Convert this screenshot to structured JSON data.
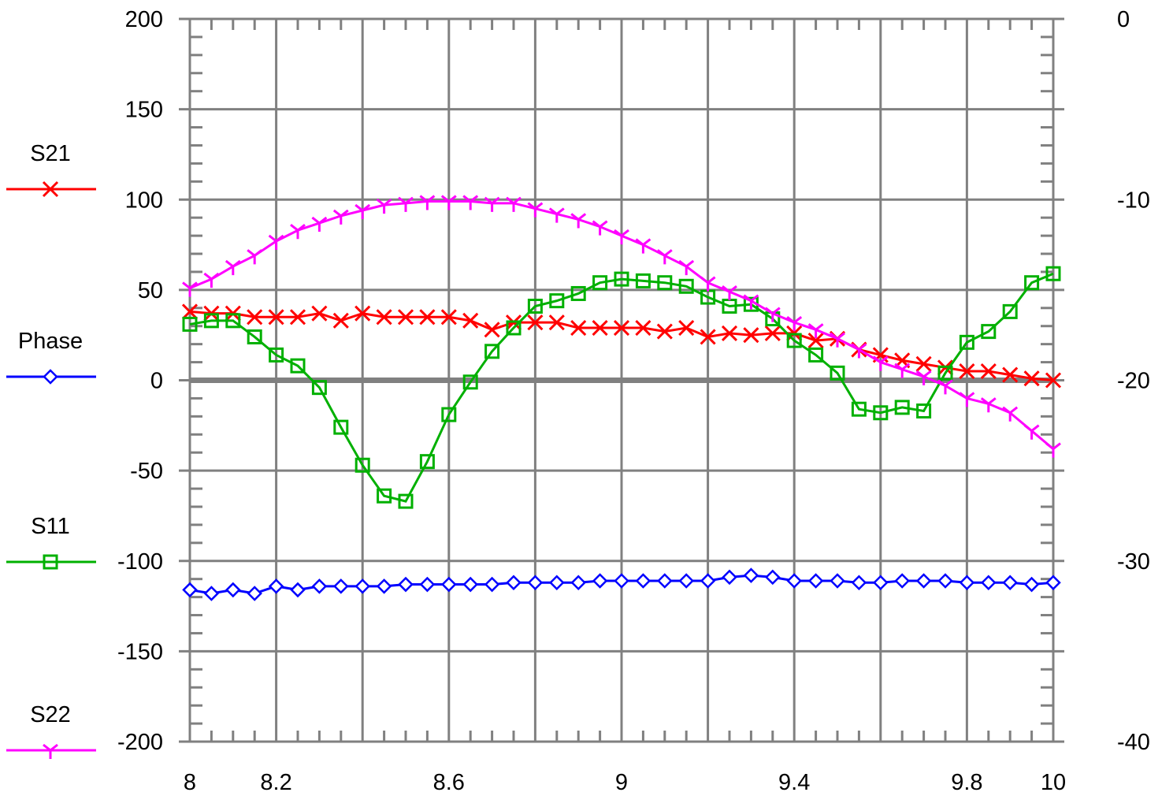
{
  "chart_data": {
    "type": "line",
    "title": "",
    "xlabel": "",
    "ylabel": "",
    "y2label": "",
    "xlim": [
      8,
      10
    ],
    "ylim": [
      -200,
      200
    ],
    "y2lim": [
      -40,
      0
    ],
    "x_ticks": [
      8,
      8.2,
      8.6,
      9,
      9.4,
      9.8,
      10
    ],
    "x_tick_labels": [
      "8",
      "8.2",
      "8.6",
      "9",
      "9.4",
      "9.8",
      "10"
    ],
    "y_ticks": [
      200,
      150,
      100,
      50,
      0,
      -50,
      -100,
      -150,
      -200
    ],
    "y_tick_labels": [
      "200",
      "150",
      "100",
      "50",
      "0",
      "-50",
      "-100",
      "-150",
      "-200"
    ],
    "y2_ticks": [
      0,
      -10,
      -20,
      -30,
      -40
    ],
    "y2_tick_labels": [
      "0",
      "-10",
      "-20",
      "-30",
      "-40"
    ],
    "grid": true,
    "legend_position": "left",
    "x": [
      8.0,
      8.05,
      8.1,
      8.15,
      8.2,
      8.25,
      8.3,
      8.35,
      8.4,
      8.45,
      8.5,
      8.55,
      8.6,
      8.65,
      8.7,
      8.75,
      8.8,
      8.85,
      8.9,
      8.95,
      9.0,
      9.05,
      9.1,
      9.15,
      9.2,
      9.25,
      9.3,
      9.35,
      9.4,
      9.45,
      9.5,
      9.55,
      9.6,
      9.65,
      9.7,
      9.75,
      9.8,
      9.85,
      9.9,
      9.95,
      10.0
    ],
    "series": [
      {
        "name": "S21",
        "axis": "right",
        "color": "#ff0000",
        "marker": "x",
        "values": [
          -16.2,
          -16.3,
          -16.3,
          -16.5,
          -16.5,
          -16.5,
          -16.3,
          -16.7,
          -16.3,
          -16.5,
          -16.5,
          -16.5,
          -16.5,
          -16.7,
          -17.2,
          -16.8,
          -16.8,
          -16.8,
          -17.1,
          -17.1,
          -17.1,
          -17.1,
          -17.3,
          -17.1,
          -17.6,
          -17.4,
          -17.5,
          -17.4,
          -17.4,
          -17.8,
          -17.7,
          -18.3,
          -18.6,
          -18.9,
          -19.1,
          -19.3,
          -19.5,
          -19.5,
          -19.7,
          -19.9,
          -20.0
        ]
      },
      {
        "name": "Phase",
        "axis": "left",
        "color": "#0000ff",
        "marker": "diamond",
        "values": [
          -116,
          -118,
          -116,
          -118,
          -114,
          -116,
          -114,
          -114,
          -114,
          -114,
          -113,
          -113,
          -113,
          -113,
          -113,
          -112,
          -112,
          -112,
          -112,
          -111,
          -111,
          -111,
          -111,
          -111,
          -111,
          -109,
          -108,
          -109,
          -111,
          -111,
          -111,
          -112,
          -112,
          -111,
          -111,
          -111,
          -112,
          -112,
          -112,
          -113,
          -112
        ]
      },
      {
        "name": "S11",
        "axis": "right",
        "color": "#00b000",
        "marker": "square",
        "values": [
          -16.9,
          -16.7,
          -16.7,
          -17.6,
          -18.6,
          -19.2,
          -20.4,
          -22.6,
          -24.7,
          -26.4,
          -26.7,
          -24.5,
          -21.9,
          -20.1,
          -18.4,
          -17.1,
          -15.9,
          -15.6,
          -15.2,
          -14.6,
          -14.4,
          -14.5,
          -14.6,
          -14.8,
          -15.4,
          -15.9,
          -15.8,
          -16.6,
          -17.8,
          -18.6,
          -19.6,
          -21.6,
          -21.8,
          -21.5,
          -21.7,
          -19.6,
          -17.9,
          -17.3,
          -16.2,
          -14.6,
          -14.1
        ]
      },
      {
        "name": "S22",
        "axis": "right",
        "color": "#ff00ff",
        "marker": "star",
        "values": [
          -14.9,
          -14.4,
          -13.7,
          -13.1,
          -12.3,
          -11.7,
          -11.3,
          -10.9,
          -10.6,
          -10.3,
          -10.2,
          -10.1,
          -10.1,
          -10.1,
          -10.2,
          -10.2,
          -10.5,
          -10.8,
          -11.1,
          -11.5,
          -12.0,
          -12.5,
          -13.1,
          -13.7,
          -14.6,
          -15.1,
          -15.6,
          -16.3,
          -16.8,
          -17.2,
          -17.7,
          -18.3,
          -19.0,
          -19.4,
          -19.8,
          -20.3,
          -21.0,
          -21.3,
          -21.8,
          -22.8,
          -23.8
        ]
      }
    ]
  }
}
